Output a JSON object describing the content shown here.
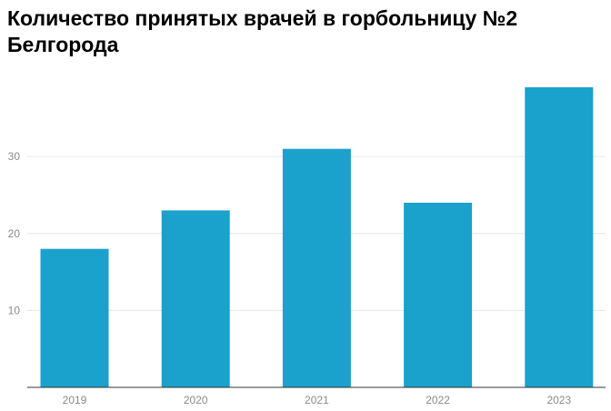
{
  "chart_data": {
    "type": "bar",
    "title": "Количество принятых врачей в горбольницу №2 Белгорода",
    "xlabel": "",
    "ylabel": "",
    "categories": [
      "2019",
      "2020",
      "2021",
      "2022",
      "2023"
    ],
    "values": [
      18,
      23,
      31,
      24,
      39
    ],
    "ylim": [
      0,
      39
    ],
    "yticks": [
      10,
      20,
      30
    ],
    "grid": true,
    "bar_color": "#1aa1cc"
  }
}
